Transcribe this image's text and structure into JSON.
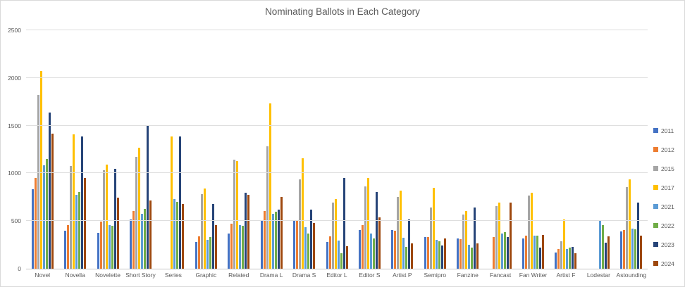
{
  "chart_data": {
    "type": "bar",
    "title": "Nominating Ballots in Each Category",
    "xlabel": "",
    "ylabel": "",
    "ylim": [
      0,
      2500
    ],
    "yticks": [
      0,
      500,
      1000,
      1500,
      2000,
      2500
    ],
    "grid": true,
    "legend_position": "right",
    "categories": [
      "Novel",
      "Novella",
      "Novelette",
      "Short Story",
      "Series",
      "Graphic",
      "Related",
      "Drama L",
      "Drama S",
      "Editor L",
      "Editor S",
      "Artist P",
      "Semipro",
      "Fanzine",
      "Fancast",
      "Fan Writer",
      "Artist F",
      "Lodestar",
      "Astounding"
    ],
    "series": [
      {
        "name": "2011",
        "color": "#4472C4",
        "values": [
          830,
          400,
          375,
          515,
          null,
          280,
          370,
          505,
          510,
          280,
          405,
          405,
          335,
          320,
          null,
          320,
          170,
          null,
          390
        ]
      },
      {
        "name": "2012",
        "color": "#ED7D31",
        "values": [
          955,
          460,
          495,
          605,
          null,
          340,
          470,
          605,
          510,
          340,
          460,
          400,
          335,
          310,
          330,
          350,
          210,
          null,
          405
        ]
      },
      {
        "name": "2015",
        "color": "#A5A5A5",
        "values": [
          1825,
          1075,
          1030,
          1170,
          null,
          780,
          1140,
          1285,
          935,
          695,
          865,
          750,
          640,
          565,
          655,
          770,
          285,
          null,
          855
        ]
      },
      {
        "name": "2017",
        "color": "#FFC000",
        "values": [
          2075,
          1405,
          1090,
          1270,
          1390,
          840,
          1125,
          1735,
          1160,
          730,
          950,
          820,
          850,
          605,
          690,
          800,
          520,
          null,
          935
        ]
      },
      {
        "name": "2021",
        "color": "#5B9BD5",
        "values": [
          1085,
          775,
          460,
          575,
          730,
          300,
          455,
          575,
          435,
          295,
          370,
          325,
          305,
          250,
          370,
          350,
          205,
          505,
          420
        ]
      },
      {
        "name": "2022",
        "color": "#70AD47",
        "values": [
          1150,
          805,
          450,
          630,
          700,
          335,
          450,
          595,
          370,
          165,
          320,
          230,
          290,
          225,
          380,
          350,
          220,
          455,
          415
        ]
      },
      {
        "name": "2023",
        "color": "#264478",
        "values": [
          1635,
          1390,
          1045,
          1495,
          1390,
          680,
          795,
          620,
          620,
          950,
          805,
          520,
          240,
          640,
          335,
          225,
          230,
          275,
          695
        ]
      },
      {
        "name": "2024",
        "color": "#9E480E",
        "values": [
          1415,
          955,
          745,
          715,
          680,
          460,
          775,
          750,
          480,
          235,
          540,
          265,
          315,
          265,
          690,
          355,
          165,
          340,
          345
        ]
      }
    ],
    "layout_colors": {
      "text": "#595959",
      "gridline": "#dedede",
      "axis_line": "#c6c6c6",
      "background": "#ffffff",
      "border": "#d9d9d9"
    }
  }
}
